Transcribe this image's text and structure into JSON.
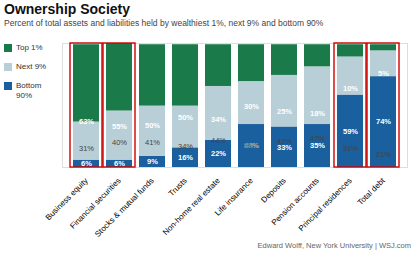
{
  "chart_data": {
    "type": "bar",
    "title": "Ownership Society",
    "subtitle": "Percent of total assets and liabilities held by wealthiest 1%, next 9% and bottom 90%",
    "source": "Edward Wolff, New York University  |  WSJ.com",
    "categories": [
      "Business equity",
      "Financial securities",
      "Stocks & mutual funds",
      "Trusts",
      "Non-home real estate",
      "Life insurance",
      "Deposits",
      "Pension accounts",
      "Principal residences",
      "Total debt"
    ],
    "series": [
      {
        "name": "Top 1%",
        "color": "#1a7a4a",
        "values": [
          63,
          55,
          50,
          50,
          34,
          30,
          25,
          18,
          10,
          5
        ],
        "value_labels": [
          "63%",
          "55%",
          "50%",
          "50%",
          "34%",
          "30%",
          "25%",
          "18%",
          "10%",
          "5%"
        ]
      },
      {
        "name": "Next 9%",
        "color": "#b8cfd8",
        "values": [
          31,
          40,
          41,
          34,
          44,
          35,
          42,
          47,
          31,
          21
        ],
        "value_labels": [
          "31%",
          "40%",
          "41%",
          "34%",
          "44%",
          "35%",
          "42%",
          "47%",
          "31%",
          "21%"
        ]
      },
      {
        "name": "Bottom\n90%",
        "color": "#1a5f9e",
        "values": [
          6,
          6,
          9,
          16,
          22,
          35,
          33,
          35,
          59,
          74
        ],
        "value_labels": [
          "6%",
          "6%",
          "9%",
          "16%",
          "22%",
          "35%",
          "33%",
          "35%",
          "59%",
          "74%"
        ]
      }
    ],
    "stacked": true,
    "data_labels": true,
    "highlighted": {
      "categories": [
        "Business equity",
        "Financial securities",
        "Principal residences",
        "Total debt"
      ],
      "color": "#cc0000"
    },
    "ylim": [
      0,
      101
    ],
    "yticks": [],
    "tick_labels": "x",
    "grid": false,
    "legend": "upper left"
  }
}
